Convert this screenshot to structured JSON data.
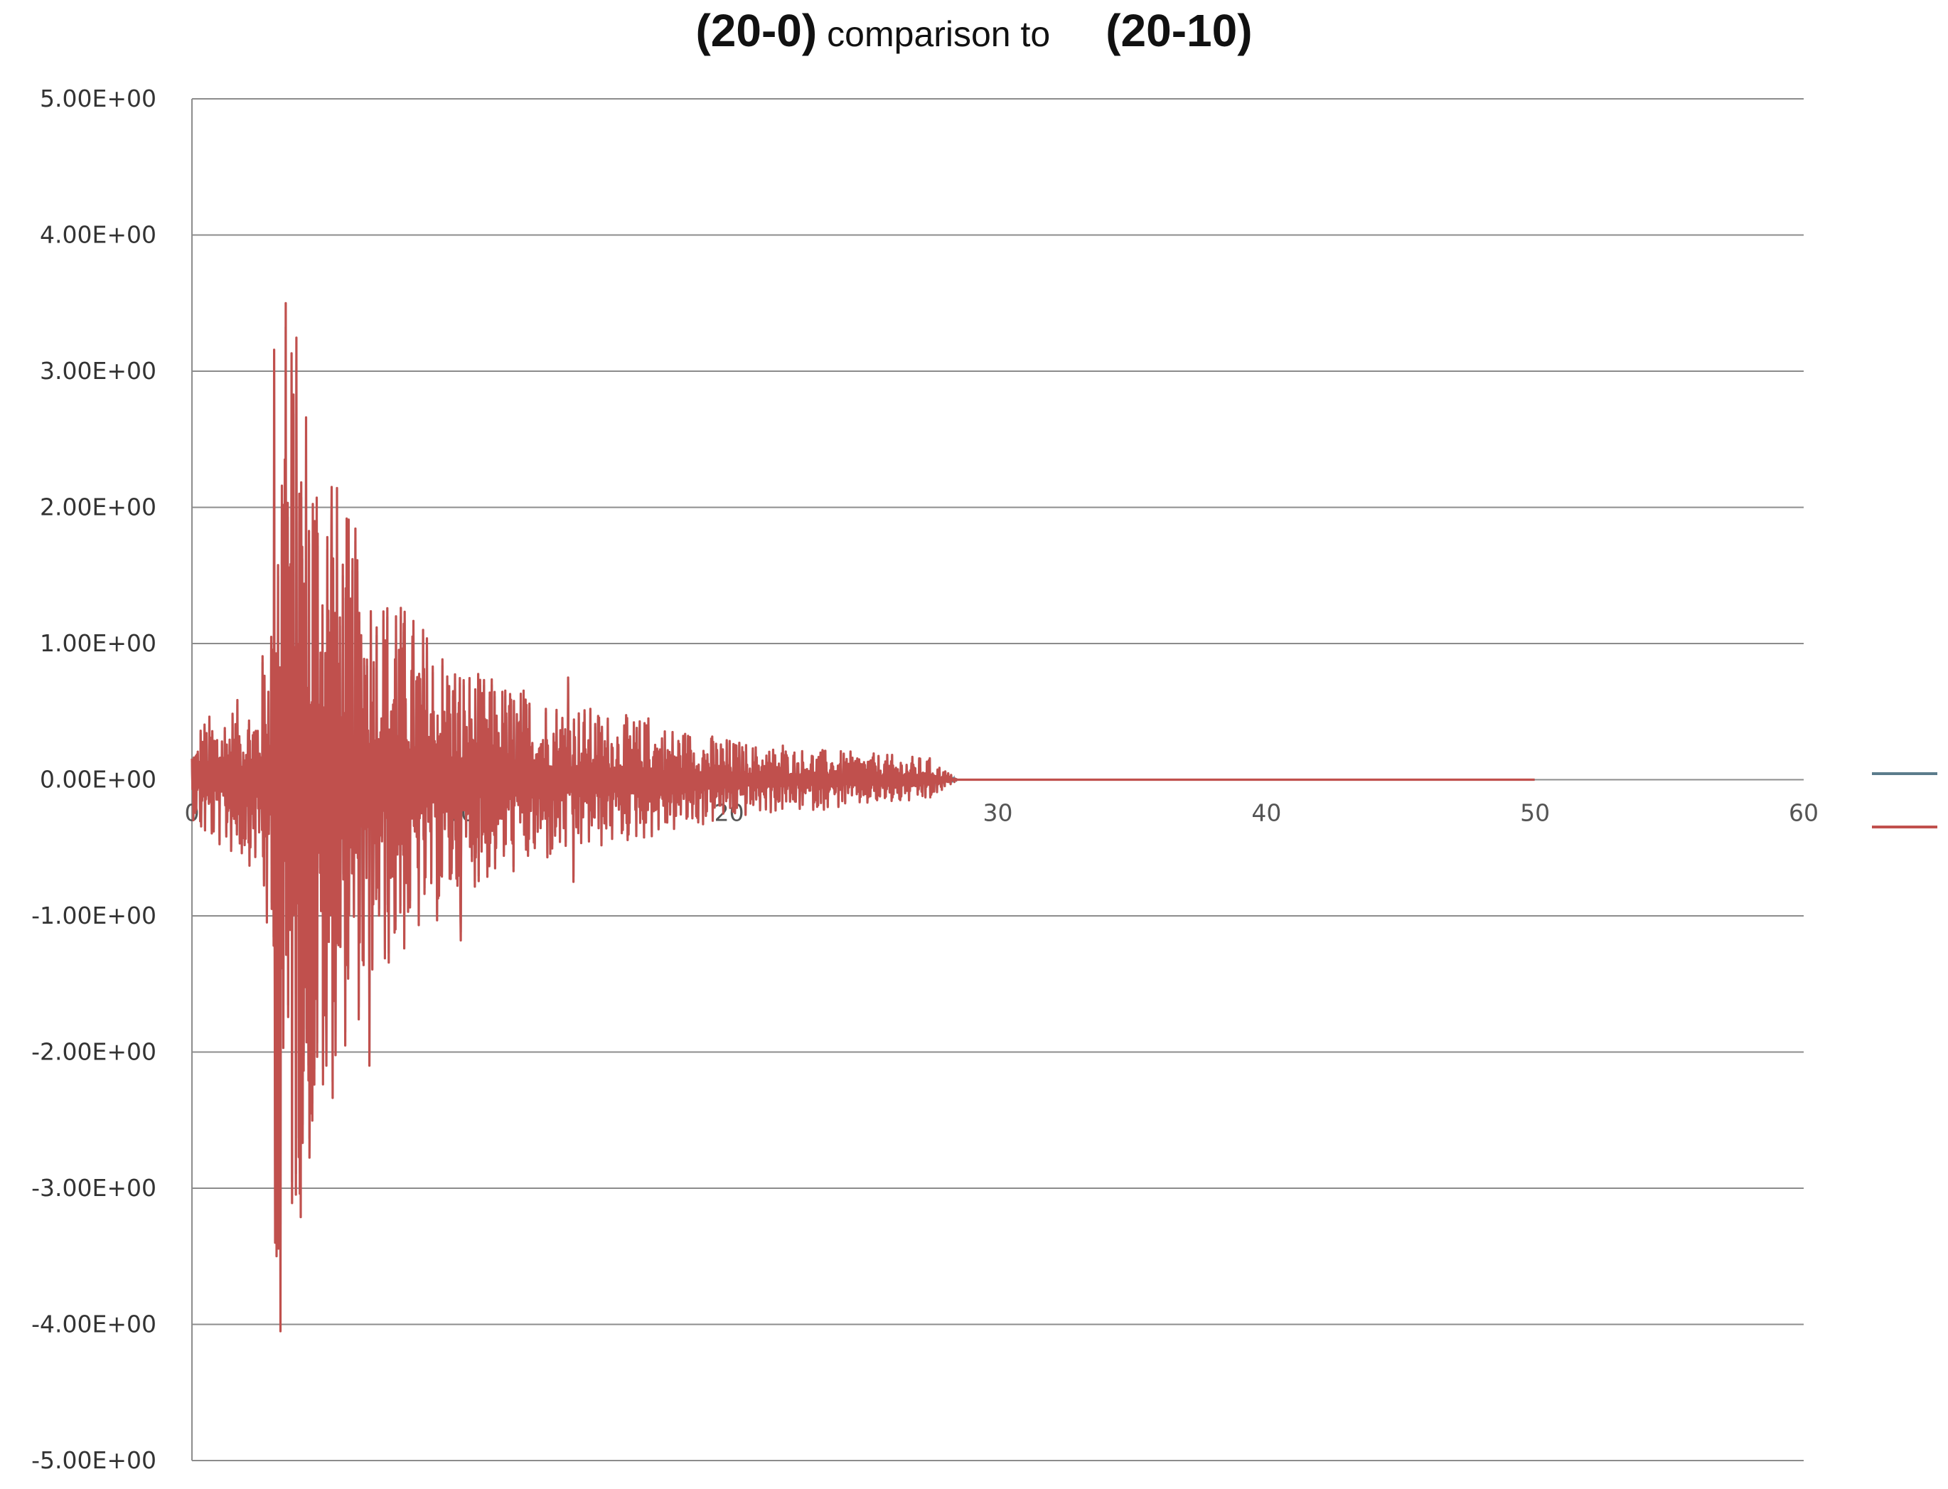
{
  "chart_data": {
    "type": "line",
    "title_parts": [
      "(20-0)",
      "comparison to",
      "(20-10)"
    ],
    "xlabel": "",
    "ylabel": "",
    "xlim": [
      0,
      60
    ],
    "ylim": [
      -5,
      5
    ],
    "x_ticks": [
      "0",
      "10",
      "20",
      "30",
      "40",
      "50",
      "60"
    ],
    "y_ticks": [
      "5.00E+00",
      "4.00E+00",
      "3.00E+00",
      "2.00E+00",
      "1.00E+00",
      "0.00E+00",
      "-1.00E+00",
      "-2.00E+00",
      "-3.00E+00",
      "-4.00E+00",
      "-5.00E+00"
    ],
    "grid": "horizontal",
    "legend": "right",
    "series": [
      {
        "color": "#5b7c8c",
        "description": "overlapped by red series, visible only as legend swatch",
        "duration": [
          0,
          50
        ]
      },
      {
        "color": "#c0504d",
        "duration": [
          0,
          50
        ],
        "peaks": [
          {
            "x": 3.3,
            "y": 4.0
          },
          {
            "x": 3.3,
            "y": -4.05
          },
          {
            "x": 3.5,
            "y": 3.5
          },
          {
            "x": 3.1,
            "y": -3.4
          },
          {
            "x": 4.0,
            "y": 2.1
          },
          {
            "x": 4.4,
            "y": -2.1
          },
          {
            "x": 5.2,
            "y": 2.15
          },
          {
            "x": 5.0,
            "y": -2.1
          },
          {
            "x": 6.6,
            "y": 1.7
          },
          {
            "x": 6.6,
            "y": -2.1
          },
          {
            "x": 7.6,
            "y": 1.2
          },
          {
            "x": 10.0,
            "y": 1.2
          },
          {
            "x": 10.0,
            "y": -1.18
          },
          {
            "x": 14.0,
            "y": 0.75
          },
          {
            "x": 14.2,
            "y": -0.75
          },
          {
            "x": 17.0,
            "y": 0.45
          },
          {
            "x": 22.0,
            "y": 0.25
          },
          {
            "x": 28.0,
            "y": 0.0
          },
          {
            "x": 50.0,
            "y": 0.0
          }
        ]
      }
    ]
  }
}
